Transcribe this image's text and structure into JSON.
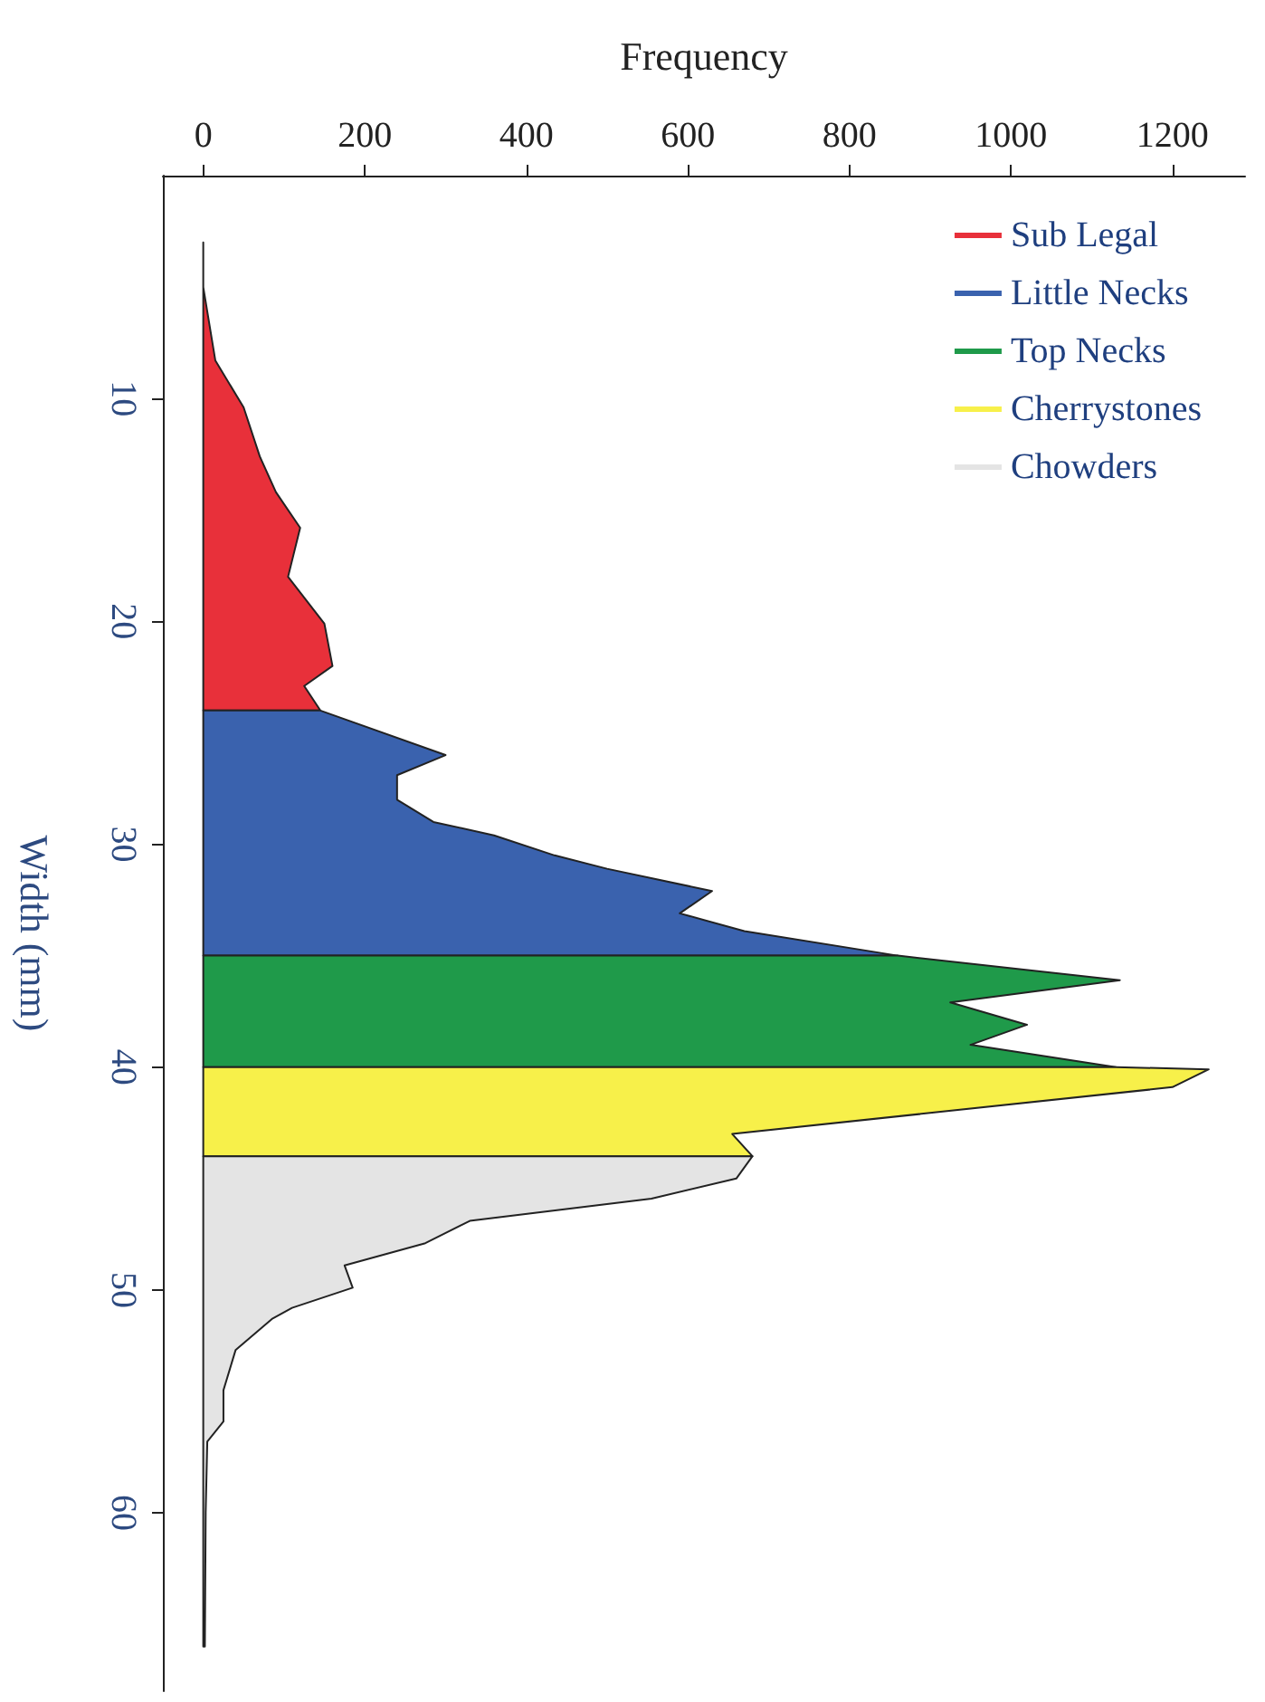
{
  "chart_data": {
    "type": "area",
    "orientation": "horizontal",
    "xlabel": "Frequency",
    "ylabel": "Width (mm)",
    "xlim": [
      -50,
      1290
    ],
    "xticks": [
      0,
      200,
      400,
      600,
      800,
      1000,
      1200
    ],
    "ylim": [
      68,
      0
    ],
    "yticks": [
      10,
      20,
      30,
      40,
      50,
      60
    ],
    "legend": "top right",
    "series": [
      {
        "name": "Sub Legal",
        "color": "#e8303a",
        "x": [
          3,
          5,
          8.3,
          10.4,
          12.6,
          14.2,
          15.8,
          18,
          20.1,
          22,
          22.9,
          24
        ],
        "values": [
          0,
          0,
          15,
          50,
          70,
          90,
          120,
          105,
          150,
          160,
          125,
          145
        ]
      },
      {
        "name": "Little Necks",
        "color": "#3a62ae",
        "x": [
          24,
          26,
          26.9,
          28,
          29,
          29.6,
          30.5,
          31.1,
          32.1,
          33.1,
          33.9,
          35
        ],
        "values": [
          145,
          300,
          240,
          240,
          285,
          360,
          435,
          500,
          630,
          590,
          670,
          860
        ]
      },
      {
        "name": "Top Necks",
        "color": "#1f9a4a",
        "x": [
          35,
          36.1,
          37.1,
          38.1,
          39,
          40
        ],
        "values": [
          860,
          1135,
          925,
          1020,
          950,
          1130
        ]
      },
      {
        "name": "Cherrystones",
        "color": "#f7f04a",
        "x": [
          40,
          40.1,
          40.9,
          43,
          44
        ],
        "values": [
          1130,
          1245,
          1200,
          655,
          680
        ]
      },
      {
        "name": "Chowders",
        "color": "#e4e4e4",
        "x": [
          44,
          45,
          45.9,
          46.9,
          47.9,
          48.9,
          49.9,
          50.8,
          51.3,
          52.7,
          54.5,
          55.9,
          56.8,
          60,
          66
        ],
        "values": [
          680,
          660,
          555,
          330,
          275,
          175,
          185,
          110,
          85,
          40,
          25,
          25,
          5,
          3,
          2
        ]
      }
    ]
  }
}
